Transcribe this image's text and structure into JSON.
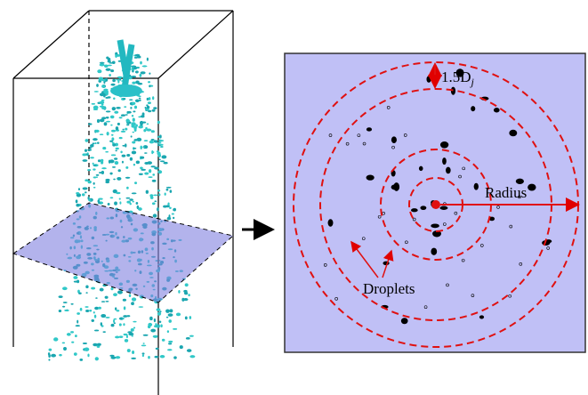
{
  "labels": {
    "spacing": "1.5D",
    "spacing_sub": "j",
    "radius": "Radius",
    "droplets": "Droplets"
  }
}
